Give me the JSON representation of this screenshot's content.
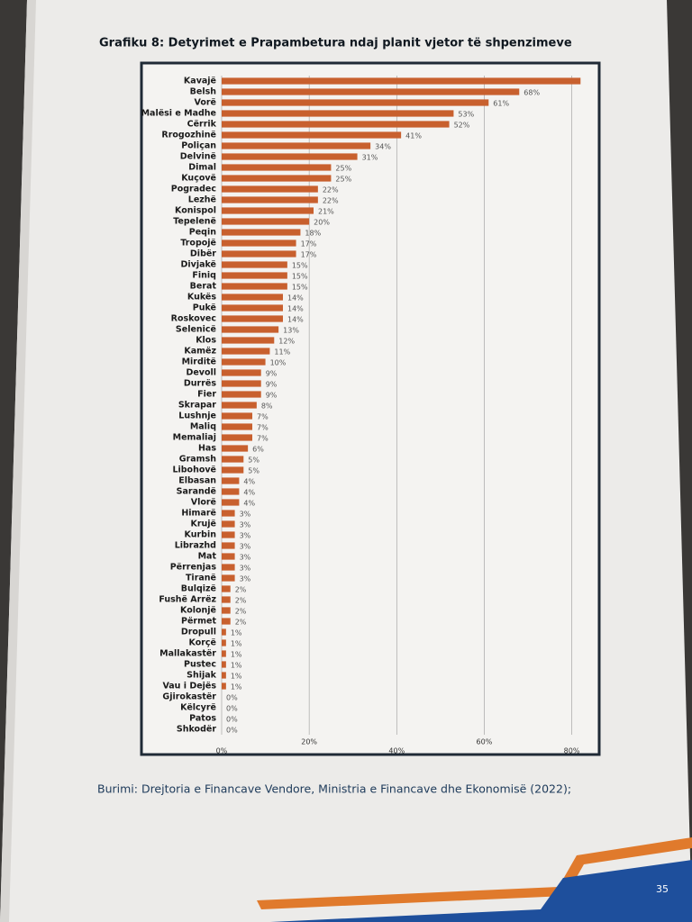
{
  "title": "Grafiku 8: Detyrimet e Prapambetura ndaj planit vjetor të shpenzimeve",
  "source": "Burimi: Drejtoria e Financave Vendore, Ministria e Financave dhe Ekonomisë (2022);",
  "page_number": "35",
  "chart_data": {
    "type": "hbar",
    "color": "#c8602e",
    "grid": true,
    "categories": [
      "Kavajë",
      "Belsh",
      "Vorë",
      "Malësi e Madhe",
      "Cërrik",
      "Rrogozhinë",
      "Poliçan",
      "Delvinë",
      "Dimal",
      "Kuçovë",
      "Pogradec",
      "Lezhë",
      "Konispol",
      "Tepelenë",
      "Peqin",
      "Tropojë",
      "Dibër",
      "Divjakë",
      "Finiq",
      "Berat",
      "Kukës",
      "Pukë",
      "Roskovec",
      "Selenicë",
      "Klos",
      "Kamëz",
      "Mirditë",
      "Devoll",
      "Durrës",
      "Fier",
      "Skrapar",
      "Lushnje",
      "Maliq",
      "Memaliaj",
      "Has",
      "Gramsh",
      "Libohovë",
      "Elbasan",
      "Sarandë",
      "Vlorë",
      "Himarë",
      "Krujë",
      "Kurbin",
      "Librazhd",
      "Mat",
      "Përrenjas",
      "Tiranë",
      "Bulqizë",
      "Fushë Arrëz",
      "Kolonjë",
      "Përmet",
      "Dropull",
      "Korçë",
      "Mallakastër",
      "Pustec",
      "Shijak",
      "Vau i Dejës",
      "Gjirokastër",
      "Këlcyrë",
      "Patos",
      "Shkodër"
    ],
    "values": [
      82,
      68,
      61,
      53,
      52,
      41,
      34,
      31,
      25,
      25,
      22,
      22,
      21,
      20,
      18,
      17,
      17,
      15,
      15,
      15,
      14,
      14,
      14,
      13,
      12,
      11,
      10,
      9,
      9,
      9,
      8,
      7,
      7,
      7,
      6,
      5,
      5,
      4,
      4,
      4,
      3,
      3,
      3,
      3,
      3,
      3,
      3,
      2,
      2,
      2,
      2,
      1,
      1,
      1,
      1,
      1,
      1,
      0,
      0,
      0,
      0
    ],
    "value_labels": [
      null,
      "68%",
      "61%",
      "53%",
      "52%",
      "41%",
      "34%",
      "31%",
      "25%",
      "25%",
      "22%",
      "22%",
      "21%",
      "20%",
      "18%",
      "17%",
      "17%",
      "15%",
      "15%",
      "15%",
      "14%",
      "14%",
      "14%",
      "13%",
      "12%",
      "11%",
      "10%",
      "9%",
      "9%",
      "9%",
      "8%",
      "7%",
      "7%",
      "7%",
      "6%",
      "5%",
      "5%",
      "4%",
      "4%",
      "4%",
      "3%",
      "3%",
      "3%",
      "3%",
      "3%",
      "3%",
      "3%",
      "2%",
      "2%",
      "2%",
      "2%",
      "1%",
      "1%",
      "1%",
      "1%",
      "1%",
      "1%",
      "0%",
      "0%",
      "0%",
      "0%"
    ],
    "xlim": [
      0,
      84
    ],
    "xticks": [
      {
        "value": 0,
        "label": "0%"
      },
      {
        "value": 20,
        "label": "20%"
      },
      {
        "value": 40,
        "label": "40%"
      },
      {
        "value": 60,
        "label": "60%"
      },
      {
        "value": 80,
        "label": "80%"
      }
    ]
  }
}
